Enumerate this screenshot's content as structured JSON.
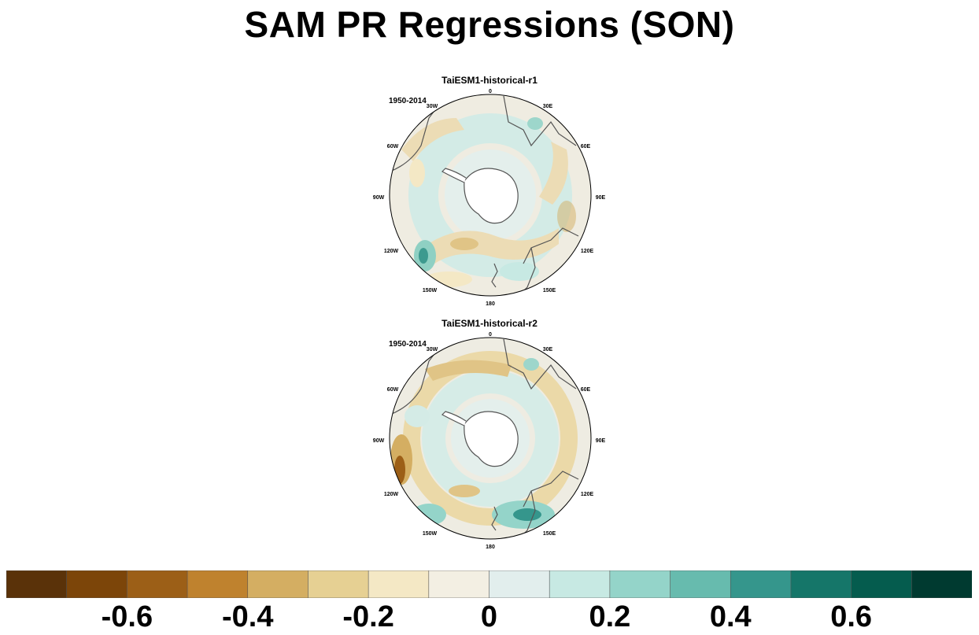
{
  "title": "SAM PR Regressions (SON)",
  "panels": [
    {
      "title": "TaiESM1-historical-r1",
      "period": "1950-2014",
      "lon_labels": [
        "0",
        "30E",
        "60E",
        "90E",
        "120E",
        "150E",
        "180",
        "150W",
        "120W",
        "90W",
        "60W",
        "30W"
      ]
    },
    {
      "title": "TaiESM1-historical-r2",
      "period": "1950-2014",
      "lon_labels": [
        "0",
        "30E",
        "60E",
        "90E",
        "120E",
        "150E",
        "180",
        "150W",
        "120W",
        "90W",
        "60W",
        "30W"
      ]
    }
  ],
  "colorbar": {
    "colors": [
      "#5a3209",
      "#7c4509",
      "#9c5f17",
      "#bf822e",
      "#d4ae62",
      "#e6d093",
      "#f4e8c5",
      "#f3efe3",
      "#e2eeed",
      "#c7e9e3",
      "#94d4c9",
      "#67bbae",
      "#35968c",
      "#157669",
      "#055c4e",
      "#003a30"
    ],
    "tick_labels": [
      "-0.6",
      "-0.4",
      "-0.2",
      "0",
      "0.2",
      "0.4",
      "0.6"
    ],
    "tick_values": [
      -0.6,
      -0.4,
      -0.2,
      0,
      0.2,
      0.4,
      0.6
    ],
    "range": [
      -0.8,
      0.8
    ]
  }
}
